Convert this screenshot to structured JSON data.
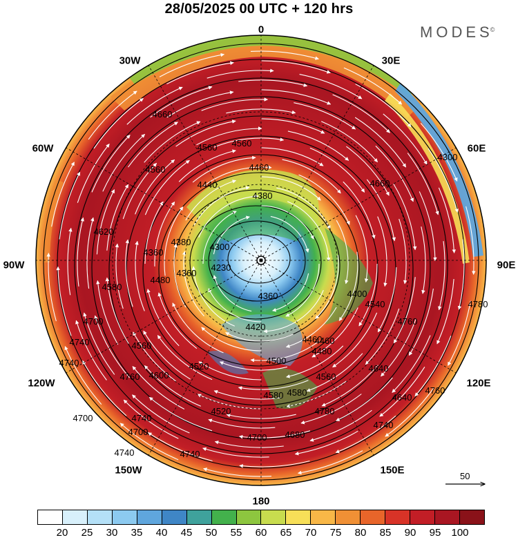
{
  "title": "28/05/2025  00 UTC  + 120 hrs",
  "brand": "MODES",
  "brand_mark": "©",
  "longitude_labels": [
    "0",
    "30E",
    "60E",
    "90E",
    "120E",
    "150E",
    "180",
    "150W",
    "120W",
    "90W",
    "60W",
    "30W"
  ],
  "reference_vector": {
    "label": "50",
    "value": 50
  },
  "colorbar": {
    "colors": [
      "#ffffff",
      "#d8f0fb",
      "#b4e0f7",
      "#8ccaf0",
      "#5fa6dd",
      "#3f86c6",
      "#3fa29c",
      "#43b14c",
      "#8dc63f",
      "#c8dc4e",
      "#f7df58",
      "#f8b747",
      "#f09035",
      "#e8652a",
      "#d83327",
      "#c21e26",
      "#a91622",
      "#8a1219"
    ],
    "ticks": [
      "20",
      "25",
      "30",
      "35",
      "40",
      "45",
      "50",
      "55",
      "60",
      "65",
      "70",
      "75",
      "80",
      "85",
      "90",
      "95",
      "100"
    ]
  },
  "contour_labels": [
    {
      "text": "4740"
    },
    {
      "text": "4740"
    },
    {
      "text": "4700"
    },
    {
      "text": "4620"
    },
    {
      "text": "4660"
    },
    {
      "text": "4560"
    },
    {
      "text": "4580"
    },
    {
      "text": "4560"
    },
    {
      "text": "4560"
    },
    {
      "text": "4460"
    },
    {
      "text": "4440"
    },
    {
      "text": "4380"
    },
    {
      "text": "4360"
    },
    {
      "text": "4380"
    },
    {
      "text": "4300"
    },
    {
      "text": "4230"
    },
    {
      "text": "4360"
    },
    {
      "text": "4480"
    },
    {
      "text": "4420"
    },
    {
      "text": "4460"
    },
    {
      "text": "4360"
    },
    {
      "text": "4400"
    },
    {
      "text": "4460"
    },
    {
      "text": "4480"
    },
    {
      "text": "4500"
    },
    {
      "text": "4520"
    },
    {
      "text": "4540"
    },
    {
      "text": "4560"
    },
    {
      "text": "4600"
    },
    {
      "text": "4580"
    },
    {
      "text": "4560"
    },
    {
      "text": "4520"
    },
    {
      "text": "4580"
    },
    {
      "text": "4640"
    },
    {
      "text": "4640"
    },
    {
      "text": "4680"
    },
    {
      "text": "4700"
    },
    {
      "text": "4700"
    },
    {
      "text": "4740"
    },
    {
      "text": "4760"
    },
    {
      "text": "4760"
    },
    {
      "text": "4780"
    },
    {
      "text": "4760"
    },
    {
      "text": "4740"
    },
    {
      "text": "4740"
    },
    {
      "text": "4780"
    },
    {
      "text": "4300"
    },
    {
      "text": "4700"
    },
    {
      "text": "4660"
    },
    {
      "text": "4740"
    }
  ]
}
